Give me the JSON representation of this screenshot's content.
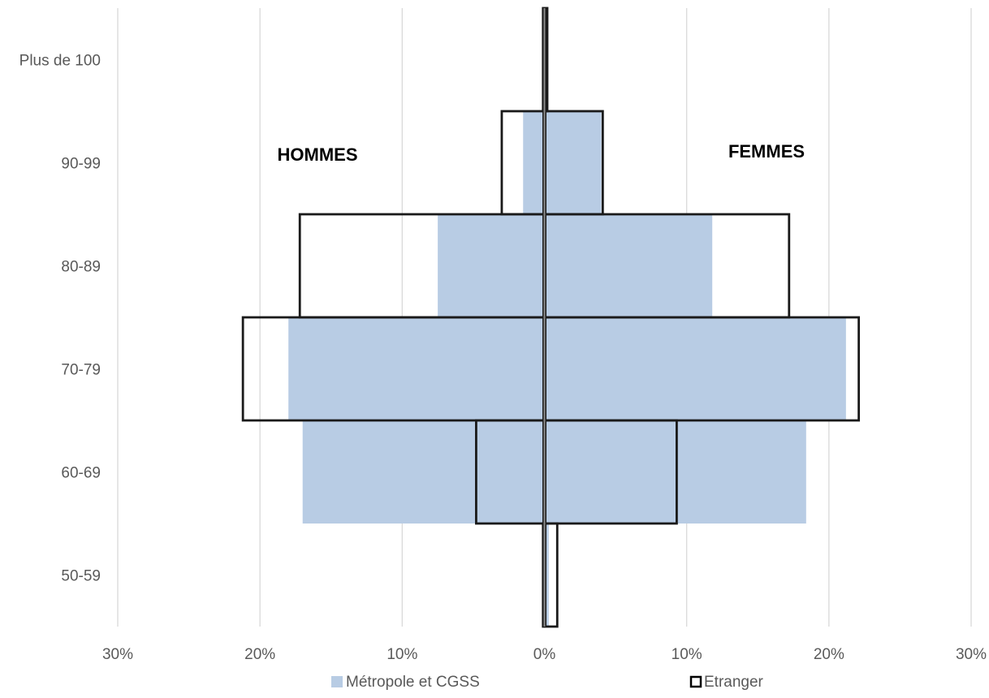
{
  "chart_data": {
    "type": "bar",
    "orientation": "horizontal",
    "layout": "population-pyramid",
    "categories": [
      "50-59",
      "60-69",
      "70-79",
      "80-89",
      "90-99",
      "Plus de 100"
    ],
    "series": [
      {
        "name": "Métropole et CGSS",
        "style": "filled",
        "color": "#b8cce4",
        "left": [
          0.1,
          17.0,
          18.0,
          7.5,
          1.5,
          0.0
        ],
        "right": [
          0.3,
          18.4,
          21.2,
          11.8,
          4.0,
          0.1
        ]
      },
      {
        "name": "Etranger",
        "style": "outline",
        "color": "#1a1a1a",
        "left": [
          0.1,
          4.8,
          21.2,
          17.2,
          3.0,
          0.1
        ],
        "right": [
          0.9,
          9.3,
          22.1,
          17.2,
          4.1,
          0.2
        ]
      }
    ],
    "xlim": [
      -30,
      30
    ],
    "xticks": [
      -30,
      -20,
      -10,
      0,
      10,
      20,
      30
    ],
    "xtick_labels": [
      "30%",
      "20%",
      "10%",
      "0%",
      "10%",
      "20%",
      "30%"
    ],
    "grid": "vertical",
    "legend_position": "bottom",
    "annotations": {
      "left": "HOMMES",
      "right": "FEMMES"
    }
  }
}
